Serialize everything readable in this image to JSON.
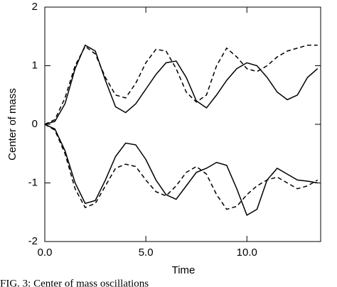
{
  "chart_data": {
    "type": "line",
    "x_label": "Time",
    "y_label": "Center of mass",
    "caption": "FIG. 3: Center of mass oscillations",
    "x": [
      0,
      0.5,
      1,
      1.5,
      2,
      2.5,
      3,
      3.5,
      4,
      4.5,
      5,
      5.5,
      6,
      6.5,
      7,
      7.5,
      8,
      8.5,
      9,
      9.5,
      10,
      10.5,
      11,
      11.5,
      12,
      12.5,
      13,
      13.5
    ],
    "series": [
      {
        "color": "#000000",
        "line_style": "solid",
        "values": [
          0,
          0.05,
          0.35,
          0.95,
          1.35,
          1.25,
          0.75,
          0.3,
          0.2,
          0.35,
          0.6,
          0.85,
          1.05,
          1.08,
          0.8,
          0.4,
          0.28,
          0.5,
          0.75,
          0.95,
          1.05,
          1.0,
          0.8,
          0.55,
          0.42,
          0.5,
          0.8,
          0.95
        ]
      },
      {
        "color": "#000000",
        "line_style": "dashed",
        "values": [
          0,
          0.08,
          0.45,
          1.0,
          1.33,
          1.2,
          0.8,
          0.5,
          0.45,
          0.7,
          1.05,
          1.28,
          1.25,
          0.95,
          0.55,
          0.38,
          0.5,
          1.0,
          1.3,
          1.15,
          0.95,
          0.9,
          1.0,
          1.15,
          1.25,
          1.3,
          1.35,
          1.35
        ]
      },
      {
        "color": "#000000",
        "line_style": "solid",
        "values": [
          0,
          -0.08,
          -0.45,
          -1.0,
          -1.35,
          -1.3,
          -0.95,
          -0.55,
          -0.32,
          -0.35,
          -0.6,
          -0.95,
          -1.2,
          -1.28,
          -1.05,
          -0.82,
          -0.75,
          -0.65,
          -0.7,
          -1.1,
          -1.55,
          -1.45,
          -0.95,
          -0.75,
          -0.85,
          -0.95,
          -0.97,
          -1.0
        ]
      },
      {
        "color": "#000000",
        "line_style": "dashed",
        "values": [
          0,
          -0.1,
          -0.5,
          -1.1,
          -1.42,
          -1.35,
          -1.05,
          -0.75,
          -0.68,
          -0.72,
          -0.95,
          -1.15,
          -1.22,
          -1.05,
          -0.82,
          -0.72,
          -0.85,
          -1.2,
          -1.45,
          -1.4,
          -1.2,
          -1.05,
          -0.95,
          -0.9,
          -1.0,
          -1.1,
          -1.05,
          -0.95
        ]
      }
    ],
    "xlim": [
      0,
      13.65
    ],
    "xticks": [
      {
        "value": 0,
        "label": "0.0"
      },
      {
        "value": 5,
        "label": "5.0"
      },
      {
        "value": 10,
        "label": "10.0"
      }
    ],
    "ylim": [
      -2,
      2
    ],
    "yticks": [
      -2,
      -1,
      0,
      1,
      2
    ],
    "grid": false
  }
}
